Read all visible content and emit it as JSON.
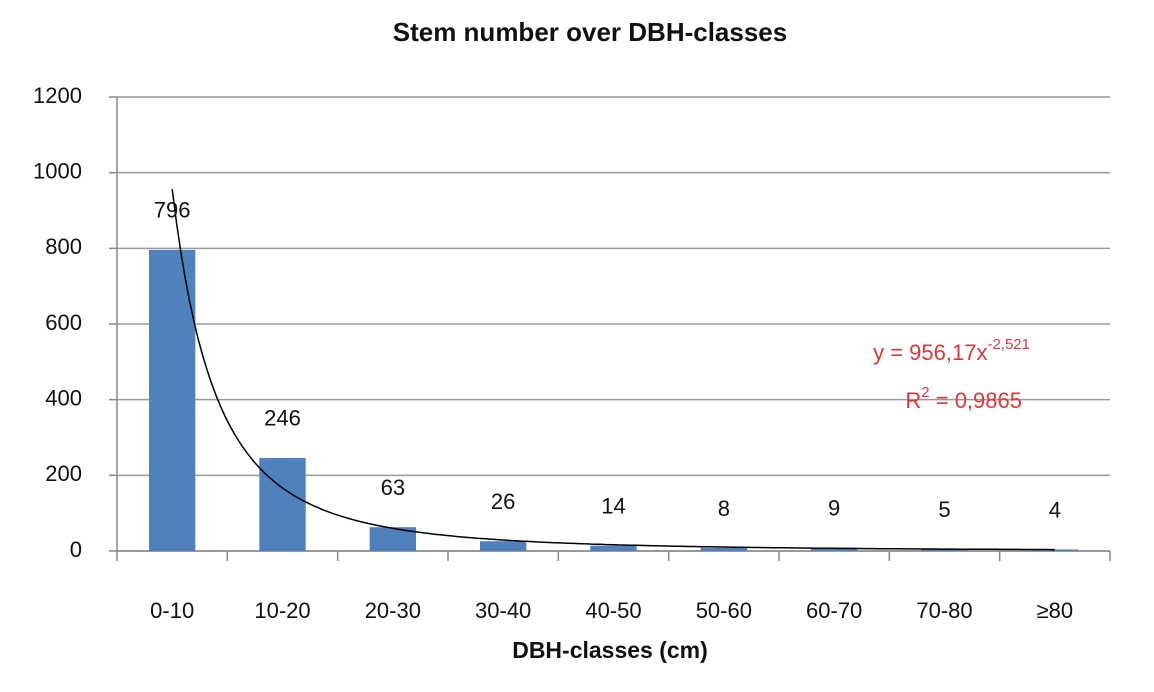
{
  "chart_data": {
    "type": "bar",
    "title": "Stem number over DBH-classes",
    "x_label": "DBH-classes  (cm)",
    "categories": [
      "0-10",
      "10-20",
      "20-30",
      "30-40",
      "40-50",
      "50-60",
      "60-70",
      "70-80",
      "≥80"
    ],
    "values": [
      796,
      246,
      63,
      26,
      14,
      8,
      9,
      5,
      4
    ],
    "color": "#4f81bd",
    "ylim": [
      0,
      1200
    ],
    "yticks": [
      0,
      200,
      400,
      600,
      800,
      1000,
      1200
    ],
    "grid": true,
    "trendline": {
      "type": "power",
      "coefficient": 956.17,
      "power": -2.521,
      "equation": "y = 956,17x",
      "exponent": "-2,521",
      "r2_base": "R",
      "r2_sup": "2",
      "r2_value": " = 0,9865",
      "color": "#d9383a"
    }
  }
}
